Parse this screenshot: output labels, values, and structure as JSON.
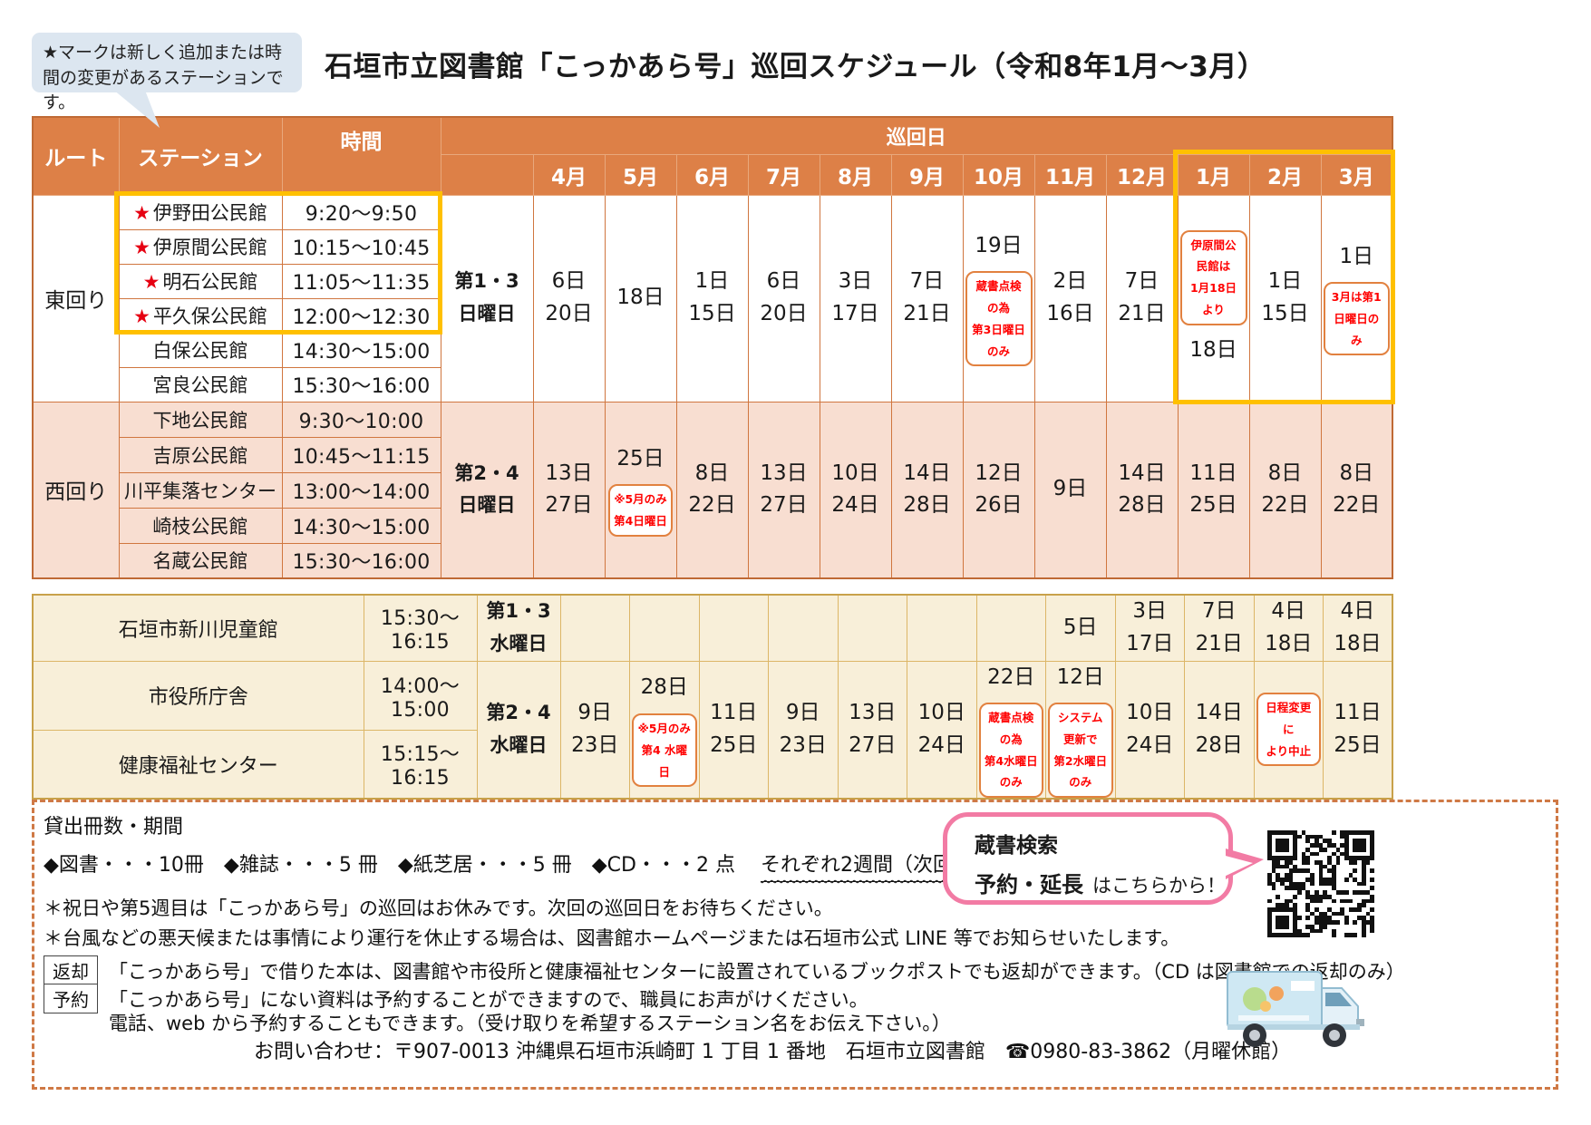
{
  "colors": {
    "header_orange": "#DD8047",
    "west_row_bg": "#F8DED1",
    "bottom_section_bg": "#F8EFD9",
    "highlight_yellow": "#FFC000",
    "note_red": "#FF0000",
    "note_border_orange": "#E2813F",
    "star_red": "#E60012",
    "callout_blue": "#DCE6F0",
    "bubble_pink": "#F27BA4"
  },
  "callout": {
    "text": "★マークは新しく追加または時間の変更があるステーションです。"
  },
  "title": "石垣市立図書館「こっかあら号」巡回スケジュール（令和8年1月～3月）",
  "schedule": {
    "headers": {
      "route": "ルート",
      "station": "ステーション",
      "time": "時間",
      "dates": "巡回日"
    },
    "months": [
      "4月",
      "5月",
      "6月",
      "7月",
      "8月",
      "9月",
      "10月",
      "11月",
      "12月",
      "1月",
      "2月",
      "3月"
    ],
    "east": {
      "route": "東回り",
      "frequency": "第1・3\n日曜日",
      "stations": [
        {
          "star": "★",
          "name": "伊野田公民館",
          "time": "9:20～9:50"
        },
        {
          "star": "★",
          "name": "伊原間公民館",
          "time": "10:15～10:45"
        },
        {
          "star": "★",
          "name": "明石公民館",
          "time": "11:05～11:35"
        },
        {
          "star": "★",
          "name": "平久保公民館",
          "time": "12:00～12:30"
        },
        {
          "name": "白保公民館",
          "time": "14:30～15:00"
        },
        {
          "name": "宮良公民館",
          "time": "15:30～16:00"
        }
      ],
      "dates": [
        "6日\n20日",
        "18日",
        "1日\n15日",
        "6日\n20日",
        "3日\n17日",
        "7日\n21日",
        "19日",
        "2日\n16日",
        "7日\n21日",
        "18日",
        "1日\n15日",
        "1日"
      ],
      "notes": {
        "oct": "蔵書点検の為\n第3日曜日のみ",
        "jan": "伊原間公民館は\n1月18日より",
        "mar": "3月は第1\n日曜日のみ"
      }
    },
    "west": {
      "route": "西回り",
      "frequency": "第2・4\n日曜日",
      "stations": [
        {
          "name": "下地公民館",
          "time": "9:30～10:00"
        },
        {
          "name": "吉原公民館",
          "time": "10:45～11:15"
        },
        {
          "name": "川平集落センター",
          "time": "13:00～14:00"
        },
        {
          "name": "崎枝公民館",
          "time": "14:30～15:00"
        },
        {
          "name": "名蔵公民館",
          "time": "15:30～16:00"
        }
      ],
      "dates": [
        "13日\n27日",
        "25日",
        "8日\n22日",
        "13日\n27日",
        "10日\n24日",
        "14日\n28日",
        "12日\n26日",
        "9日",
        "14日\n28日",
        "11日\n25日",
        "8日\n22日",
        "8日\n22日"
      ],
      "notes": {
        "may": "※5月のみ\n第4日曜日"
      }
    },
    "jidokan": {
      "name": "石垣市新川児童館",
      "time": "15:30～16:15",
      "frequency": "第1・3\n水曜日",
      "dates": [
        "",
        "",
        "",
        "",
        "",
        "",
        "",
        "5日",
        "3日\n17日",
        "7日\n21日",
        "4日\n18日",
        "4日\n18日"
      ]
    },
    "cityhall": {
      "name": "市役所庁舎",
      "time": "14:00～15:00",
      "frequency": "第2・4\n水曜日",
      "dates": [
        "9日\n23日",
        "28日",
        "11日\n25日",
        "9日\n23日",
        "13日\n27日",
        "10日\n24日",
        "22日",
        "12日",
        "10日\n24日",
        "14日\n28日",
        "",
        "11日\n25日"
      ],
      "notes": {
        "may": "※5月のみ\n第4 水曜日",
        "oct": "蔵書点検の為\n第4水曜日のみ",
        "nov": "システム更新で\n第2水曜日のみ",
        "feb": "日程変更に\nより中止"
      }
    },
    "fukushi": {
      "name": "健康福祉センター",
      "time": "15:15～16:15"
    }
  },
  "footer": {
    "heading": "貸出冊数・期間",
    "items": "◆図書・・・10冊　◆雑誌・・・5 冊　◆紙芝居・・・5 冊　◆CD・・・2 点",
    "items_period": "それぞれ2週間（次回の巡回日迄）",
    "note_holiday": "＊祝日や第5週目は「こっかあら号」の巡回はお休みです。次回の巡回日をお待ちください。",
    "note_typhoon": "＊台風などの悪天候または事情により運行を休止する場合は、図書館ホームページまたは石垣市公式 LINE 等でお知らせいたします。",
    "return_label": "返却",
    "return_text": "「こっかあら号」で借りた本は、図書館や市役所と健康福祉センターに設置されているブックポストでも返却ができます。（CD は図書館での返却のみ）",
    "reserve_label": "予約",
    "reserve_text": "「こっかあら号」にない資料は予約することができますので、職員にお声がけください。",
    "reserve_text2": "電話、web から予約することもできます。（受け取りを希望するステーション名をお伝え下さい。）",
    "contact": "お問い合わせ：〒907-0013 沖縄県石垣市浜崎町 1 丁目 1 番地　石垣市立図書館　☎0980-83-3862（月曜休館）",
    "search_bubble": {
      "line1": "蔵書検索",
      "line2_bold": "予約・延長",
      "line2_rest": "はこちらから！"
    }
  }
}
